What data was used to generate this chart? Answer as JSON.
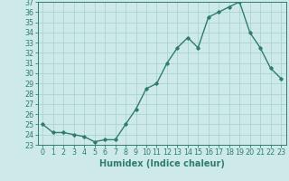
{
  "x": [
    0,
    1,
    2,
    3,
    4,
    5,
    6,
    7,
    8,
    9,
    10,
    11,
    12,
    13,
    14,
    15,
    16,
    17,
    18,
    19,
    20,
    21,
    22,
    23
  ],
  "y": [
    25.0,
    24.2,
    24.2,
    24.0,
    23.8,
    23.3,
    23.5,
    23.5,
    25.0,
    26.5,
    28.5,
    29.0,
    31.0,
    32.5,
    33.5,
    32.5,
    35.5,
    36.0,
    36.5,
    37.0,
    34.0,
    32.5,
    30.5,
    29.5
  ],
  "title": "",
  "xlabel": "Humidex (Indice chaleur)",
  "ylabel": "",
  "xlim": [
    -0.5,
    23.5
  ],
  "ylim": [
    23,
    37
  ],
  "yticks": [
    23,
    24,
    25,
    26,
    27,
    28,
    29,
    30,
    31,
    32,
    33,
    34,
    35,
    36,
    37
  ],
  "xticks": [
    0,
    1,
    2,
    3,
    4,
    5,
    6,
    7,
    8,
    9,
    10,
    11,
    12,
    13,
    14,
    15,
    16,
    17,
    18,
    19,
    20,
    21,
    22,
    23
  ],
  "line_color": "#2e7d6e",
  "marker": "D",
  "marker_size": 1.8,
  "line_width": 1.0,
  "bg_color": "#ceeae8",
  "grid_color": "#aad4d0",
  "tick_label_fontsize": 5.8,
  "xlabel_fontsize": 7.0
}
